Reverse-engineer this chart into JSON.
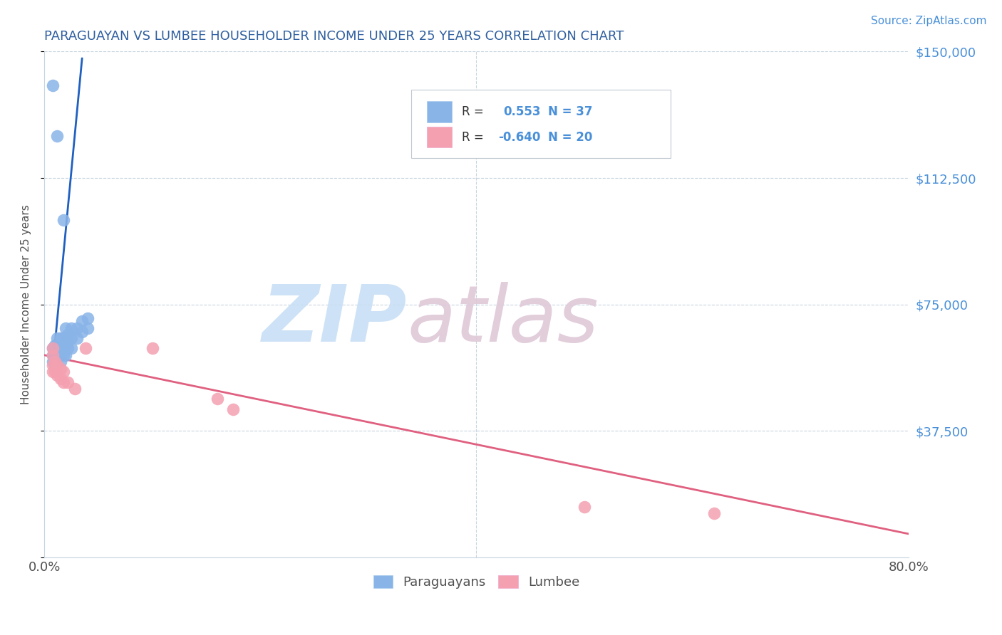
{
  "title": "PARAGUAYAN VS LUMBEE HOUSEHOLDER INCOME UNDER 25 YEARS CORRELATION CHART",
  "source_text": "Source: ZipAtlas.com",
  "xlabel": "",
  "ylabel": "Householder Income Under 25 years",
  "xlim": [
    0.0,
    0.8
  ],
  "ylim": [
    0,
    150000
  ],
  "yticks": [
    0,
    37500,
    75000,
    112500,
    150000
  ],
  "ytick_labels": [
    "",
    "$37,500",
    "$75,000",
    "$112,500",
    "$150,000"
  ],
  "xticks": [
    0.0,
    0.1,
    0.2,
    0.3,
    0.4,
    0.5,
    0.6,
    0.7,
    0.8
  ],
  "xtick_labels": [
    "0.0%",
    "",
    "",
    "",
    "",
    "",
    "",
    "",
    "80.0%"
  ],
  "paraguayan_color": "#89b4e8",
  "lumbee_color": "#f4a0b0",
  "trend_paraguayan_color": "#2060c0",
  "trend_lumbee_color": "#e06080",
  "legend_R_paraguayan": "0.553",
  "legend_N_paraguayan": "37",
  "legend_R_lumbee": "-0.640",
  "legend_N_lumbee": "20",
  "watermark_ZIP_color": "#c8dff5",
  "watermark_atlas_color": "#dfc8d8",
  "paraguayan_x": [
    0.008,
    0.008,
    0.008,
    0.01,
    0.01,
    0.01,
    0.01,
    0.012,
    0.012,
    0.012,
    0.015,
    0.015,
    0.015,
    0.015,
    0.015,
    0.018,
    0.018,
    0.018,
    0.02,
    0.02,
    0.02,
    0.02,
    0.022,
    0.022,
    0.022,
    0.025,
    0.025,
    0.025,
    0.03,
    0.03,
    0.035,
    0.035,
    0.04,
    0.04,
    0.008,
    0.012,
    0.018
  ],
  "paraguayan_y": [
    62000,
    60000,
    58000,
    63000,
    61000,
    60000,
    58000,
    65000,
    63000,
    60000,
    65000,
    63000,
    62000,
    60000,
    58000,
    65000,
    63000,
    60000,
    68000,
    65000,
    63000,
    60000,
    66000,
    64000,
    62000,
    68000,
    65000,
    62000,
    68000,
    65000,
    70000,
    67000,
    71000,
    68000,
    140000,
    125000,
    100000
  ],
  "lumbee_x": [
    0.008,
    0.008,
    0.008,
    0.008,
    0.01,
    0.01,
    0.012,
    0.012,
    0.015,
    0.015,
    0.018,
    0.018,
    0.022,
    0.028,
    0.038,
    0.1,
    0.16,
    0.175,
    0.5,
    0.62
  ],
  "lumbee_y": [
    62000,
    60000,
    57000,
    55000,
    58000,
    55000,
    57000,
    54000,
    56000,
    53000,
    55000,
    52000,
    52000,
    50000,
    62000,
    62000,
    47000,
    44000,
    15000,
    13000
  ],
  "lumbee_trend_x0": 0.0,
  "lumbee_trend_y0": 60000,
  "lumbee_trend_x1": 0.8,
  "lumbee_trend_y1": 7000,
  "paraguayan_trend_x0": 0.008,
  "paraguayan_trend_y0": 57000,
  "paraguayan_trend_x1": 0.035,
  "paraguayan_trend_y1": 148000,
  "background_color": "#ffffff",
  "grid_color": "#c8d4e0",
  "title_color": "#3060a0",
  "axis_label_color": "#505050",
  "tick_color_right": "#4a90d9",
  "source_color": "#4a90d9"
}
